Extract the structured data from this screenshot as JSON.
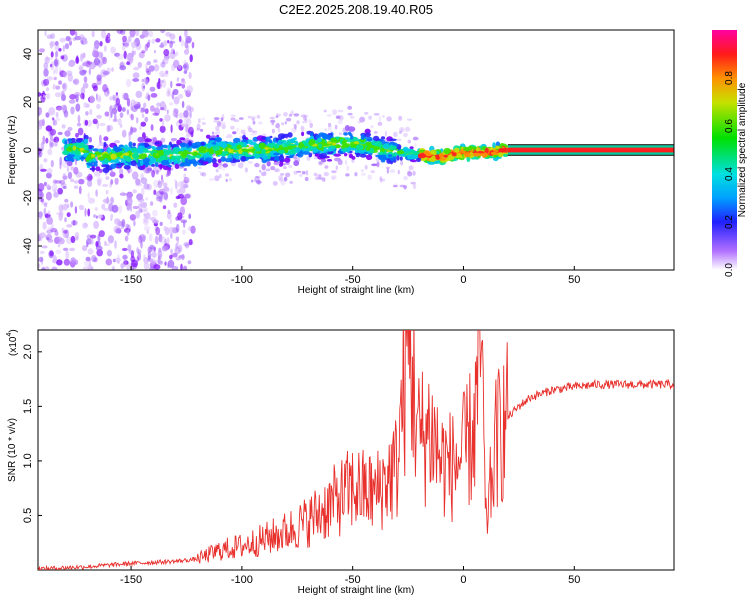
{
  "title": "C2E2.2025.208.19.40.R05",
  "colors": {
    "spectrogram_low": "#7a00ff",
    "ridge": "#ff1a1a",
    "snr_line": "#e8302c"
  },
  "chart_data": [
    {
      "type": "heatmap",
      "xlabel": "Height of straight line (km)",
      "ylabel": "Frequency (Hz)",
      "xlim": [
        -192,
        95
      ],
      "ylim": [
        -50,
        50
      ],
      "xticks": [
        -150,
        -100,
        -50,
        0,
        50
      ],
      "yticks": [
        -40,
        -20,
        0,
        20,
        40
      ],
      "ridge_center_hz": [
        {
          "x": -170,
          "y": -3
        },
        {
          "x": -150,
          "y": -2
        },
        {
          "x": -130,
          "y": -2
        },
        {
          "x": -110,
          "y": 0
        },
        {
          "x": -90,
          "y": 0
        },
        {
          "x": -70,
          "y": 2
        },
        {
          "x": -50,
          "y": 3
        },
        {
          "x": -35,
          "y": 0
        },
        {
          "x": -20,
          "y": -2
        },
        {
          "x": -10,
          "y": -3
        },
        {
          "x": 0,
          "y": -1
        },
        {
          "x": 10,
          "y": -1
        },
        {
          "x": 20,
          "y": 0
        },
        {
          "x": 95,
          "y": 0
        }
      ],
      "colorbar": {
        "label": "Normalized spectral amplitude",
        "range": [
          0,
          1
        ],
        "ticks": [
          "0.0",
          "0.2",
          "0.4",
          "0.6",
          "0.8"
        ]
      }
    },
    {
      "type": "line",
      "xlabel": "Height of straight line (km)",
      "ylabel": "SNR (10 * v/v)",
      "y_multiplier_label": "(x10",
      "y_multiplier_exp": "4",
      "y_multiplier_close": ")",
      "xlim": [
        -192,
        95
      ],
      "ylim": [
        0,
        2.2
      ],
      "xticks": [
        -150,
        -100,
        -50,
        0,
        50
      ],
      "yticks": [
        "0.5",
        "1.0",
        "1.5",
        "2.0"
      ],
      "series": [
        {
          "points": [
            [
              -192,
              0.01
            ],
            [
              -170,
              0.03
            ],
            [
              -150,
              0.06
            ],
            [
              -130,
              0.08
            ],
            [
              -120,
              0.1
            ],
            [
              -110,
              0.18
            ],
            [
              -100,
              0.22
            ],
            [
              -90,
              0.28
            ],
            [
              -80,
              0.35
            ],
            [
              -70,
              0.45
            ],
            [
              -60,
              0.6
            ],
            [
              -50,
              0.75
            ],
            [
              -40,
              0.7
            ],
            [
              -30,
              0.95
            ],
            [
              -25,
              2.15
            ],
            [
              -20,
              1.2
            ],
            [
              -15,
              1.3
            ],
            [
              -10,
              1.0
            ],
            [
              -5,
              0.95
            ],
            [
              0,
              1.05
            ],
            [
              5,
              1.3
            ],
            [
              8,
              2.15
            ],
            [
              10,
              0.4
            ],
            [
              15,
              1.2
            ],
            [
              20,
              1.4
            ],
            [
              25,
              1.5
            ],
            [
              30,
              1.58
            ],
            [
              40,
              1.65
            ],
            [
              50,
              1.68
            ],
            [
              60,
              1.7
            ],
            [
              70,
              1.7
            ],
            [
              80,
              1.7
            ],
            [
              95,
              1.7
            ]
          ]
        }
      ]
    }
  ]
}
